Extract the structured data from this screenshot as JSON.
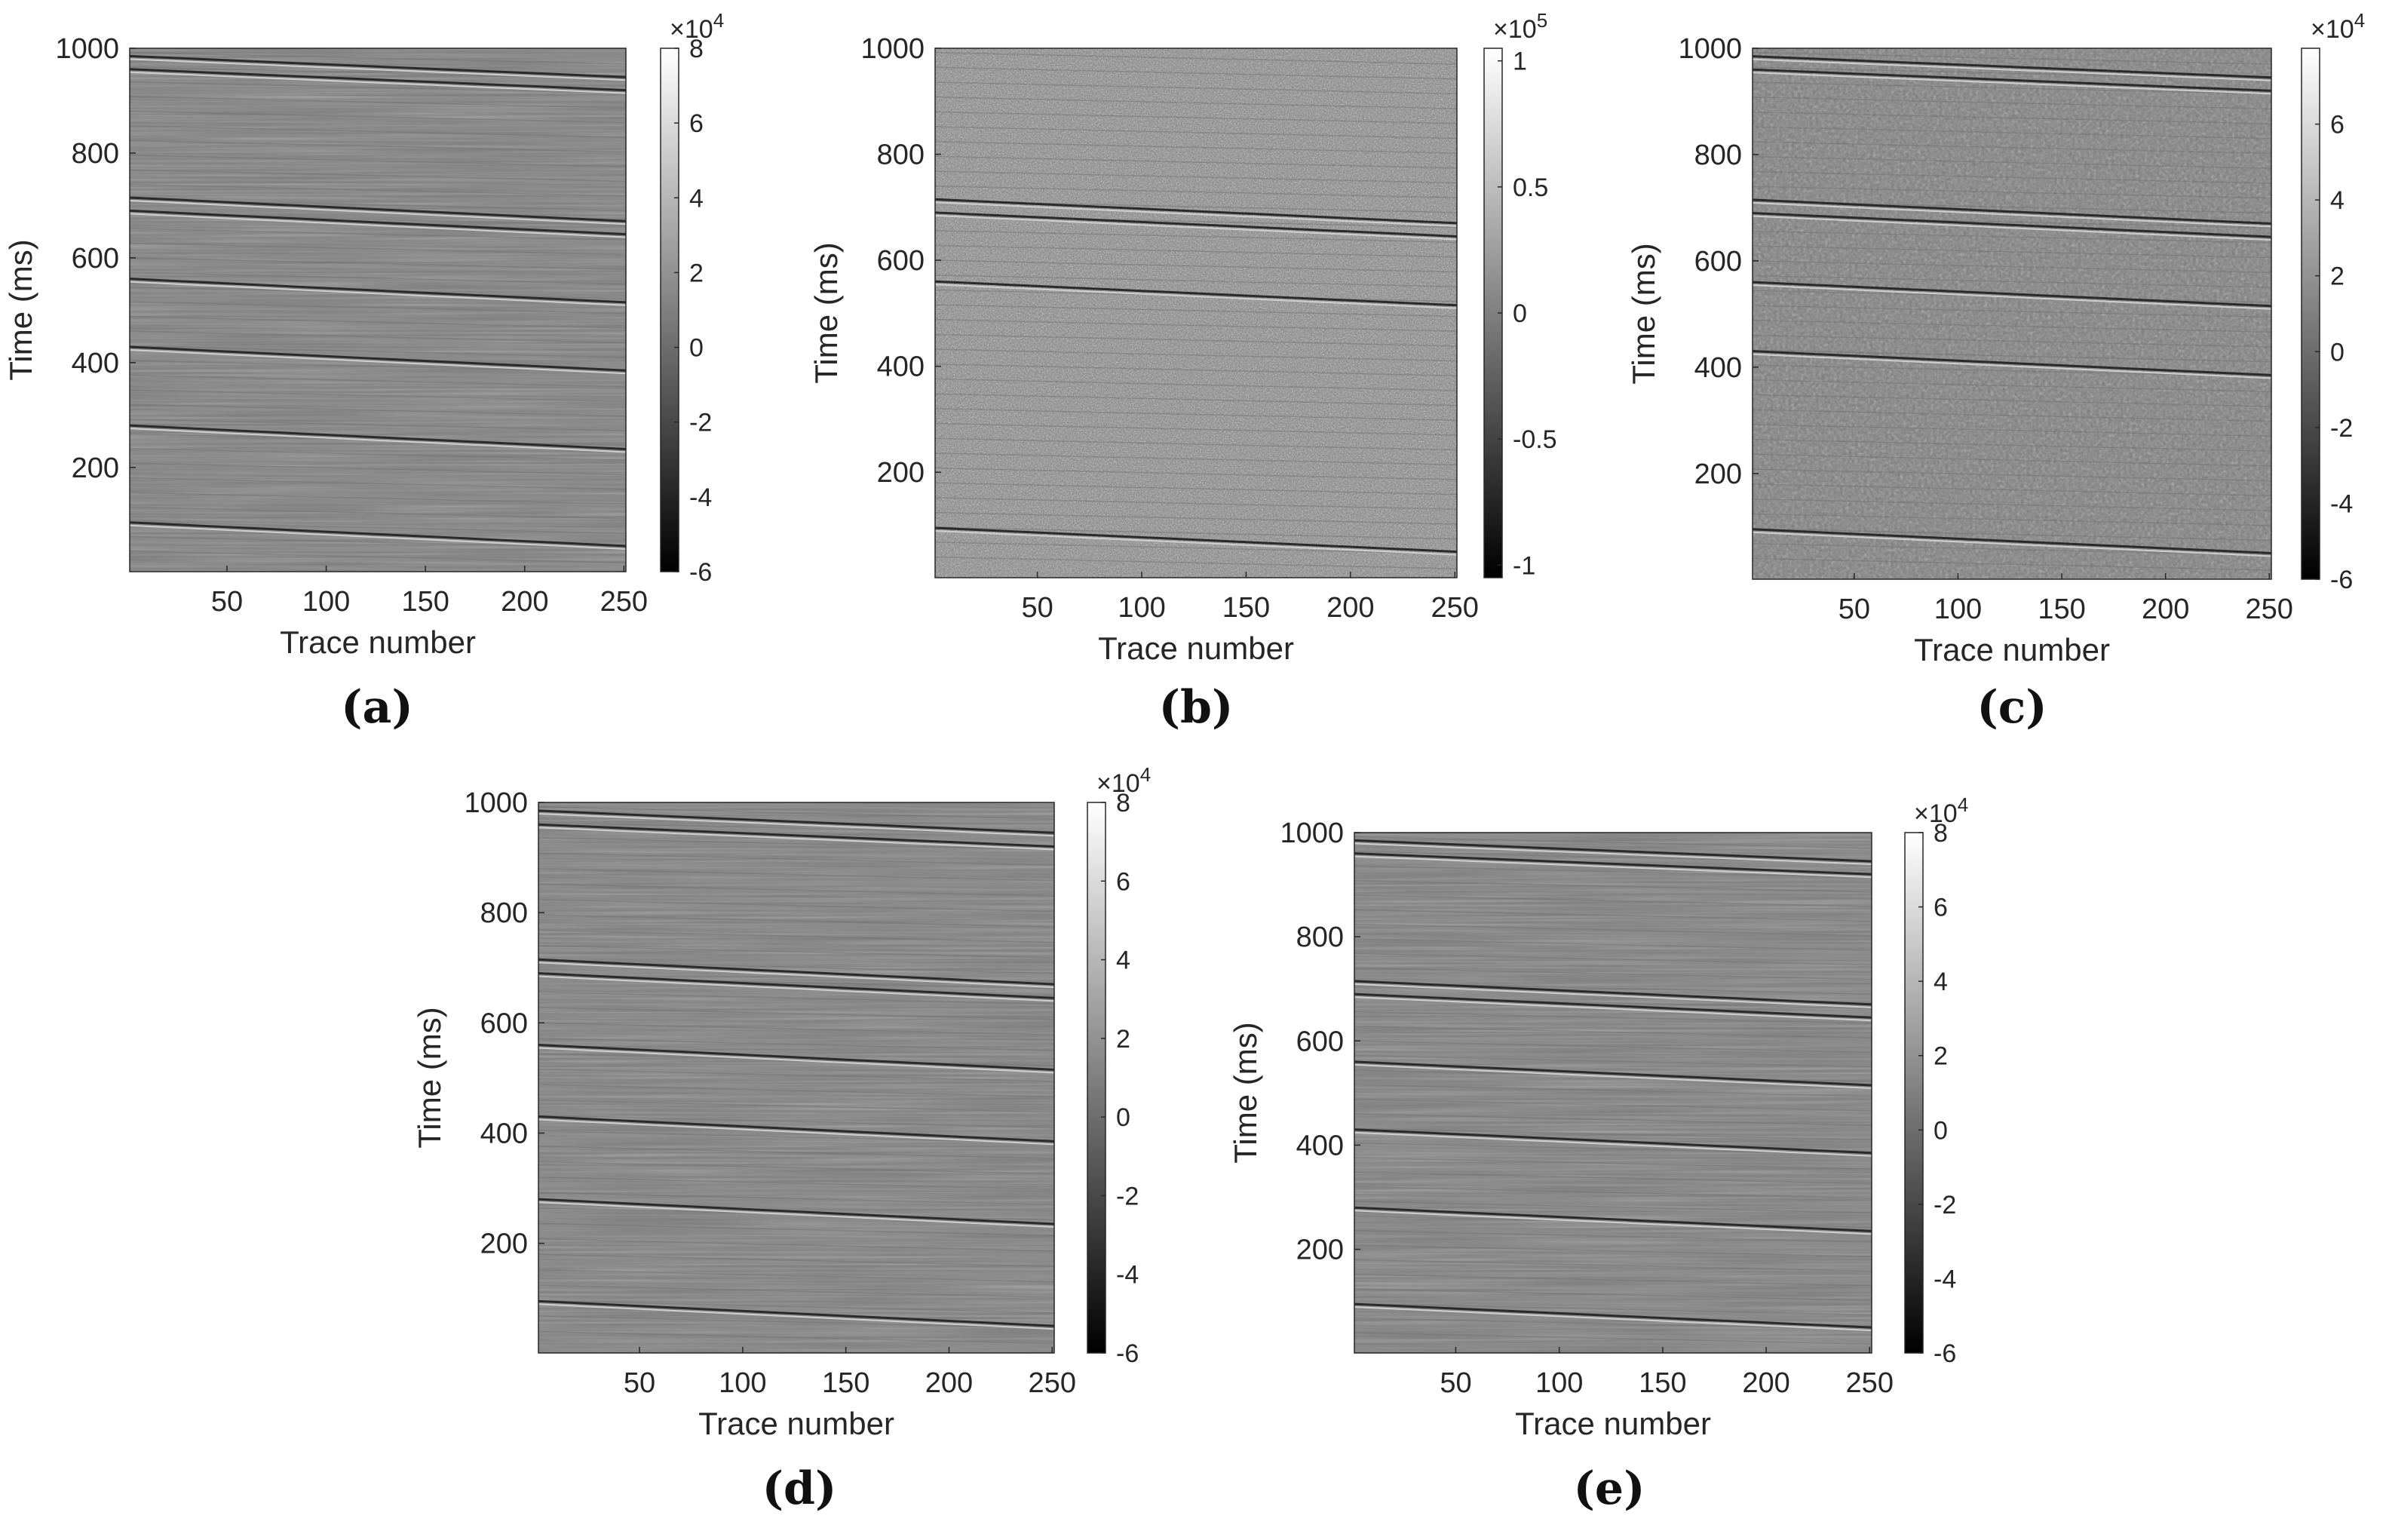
{
  "chart_data": [
    {
      "type": "heatmap",
      "panel_label": "(a)",
      "xlabel": "Trace number",
      "ylabel": "Time (ms)",
      "xticks": [
        50,
        100,
        150,
        200,
        250
      ],
      "yticks": [
        200,
        400,
        600,
        800,
        1000
      ],
      "xlim": [
        1,
        251
      ],
      "ylim": [
        1,
        1000
      ],
      "colorbar": {
        "ticks": [
          8,
          6,
          4,
          2,
          0,
          -2,
          -4,
          -6
        ],
        "tick_labels": [
          "8",
          "6",
          "4",
          "2",
          "0",
          "-2",
          "-4",
          "-6"
        ],
        "exponent_label": "×10",
        "exponent": "4",
        "range": [
          -6,
          8
        ]
      },
      "colormap": "gray",
      "noise_level": "low",
      "reflectors_ms": [
        985,
        960,
        715,
        690,
        560,
        430,
        280,
        95
      ]
    },
    {
      "type": "heatmap",
      "panel_label": "(b)",
      "xlabel": "Trace number",
      "ylabel": "Time (ms)",
      "xticks": [
        50,
        100,
        150,
        200,
        250
      ],
      "yticks": [
        200,
        400,
        600,
        800,
        1000
      ],
      "xlim": [
        1,
        251
      ],
      "ylim": [
        1,
        1000
      ],
      "colorbar": {
        "ticks": [
          1,
          0.5,
          0,
          -0.5,
          -1
        ],
        "tick_labels": [
          "1",
          "0.5",
          "0",
          "-0.5",
          "-1"
        ],
        "exponent_label": "×10",
        "exponent": "5",
        "range": [
          -1.05,
          1.05
        ]
      },
      "colormap": "gray",
      "noise_level": "high",
      "reflectors_ms": [
        715,
        690,
        560,
        95
      ]
    },
    {
      "type": "heatmap",
      "panel_label": "(c)",
      "xlabel": "Trace number",
      "ylabel": "Time (ms)",
      "xticks": [
        50,
        100,
        150,
        200,
        250
      ],
      "yticks": [
        200,
        400,
        600,
        800,
        1000
      ],
      "xlim": [
        1,
        251
      ],
      "ylim": [
        1,
        1000
      ],
      "colorbar": {
        "ticks": [
          6,
          4,
          2,
          0,
          -2,
          -4,
          -6
        ],
        "tick_labels": [
          "6",
          "4",
          "2",
          "0",
          "-2",
          "-4",
          "-6"
        ],
        "exponent_label": "×10",
        "exponent": "4",
        "range": [
          -6,
          8
        ]
      },
      "colormap": "gray",
      "noise_level": "medium",
      "reflectors_ms": [
        985,
        960,
        715,
        690,
        560,
        430,
        95
      ]
    },
    {
      "type": "heatmap",
      "panel_label": "(d)",
      "xlabel": "Trace number",
      "ylabel": "Time (ms)",
      "xticks": [
        50,
        100,
        150,
        200,
        250
      ],
      "yticks": [
        200,
        400,
        600,
        800,
        1000
      ],
      "xlim": [
        1,
        251
      ],
      "ylim": [
        1,
        1000
      ],
      "colorbar": {
        "ticks": [
          8,
          6,
          4,
          2,
          0,
          -2,
          -4,
          -6
        ],
        "tick_labels": [
          "8",
          "6",
          "4",
          "2",
          "0",
          "-2",
          "-4",
          "-6"
        ],
        "exponent_label": "×10",
        "exponent": "4",
        "range": [
          -6,
          8
        ]
      },
      "colormap": "gray",
      "noise_level": "low",
      "reflectors_ms": [
        985,
        960,
        715,
        690,
        560,
        430,
        280,
        95
      ]
    },
    {
      "type": "heatmap",
      "panel_label": "(e)",
      "xlabel": "Trace number",
      "ylabel": "Time (ms)",
      "xticks": [
        50,
        100,
        150,
        200,
        250
      ],
      "yticks": [
        200,
        400,
        600,
        800,
        1000
      ],
      "xlim": [
        1,
        251
      ],
      "ylim": [
        1,
        1000
      ],
      "colorbar": {
        "ticks": [
          8,
          6,
          4,
          2,
          0,
          -2,
          -4,
          -6
        ],
        "tick_labels": [
          "8",
          "6",
          "4",
          "2",
          "0",
          "-2",
          "-4",
          "-6"
        ],
        "exponent_label": "×10",
        "exponent": "4",
        "range": [
          -6,
          8
        ]
      },
      "colormap": "gray",
      "noise_level": "low",
      "reflectors_ms": [
        985,
        960,
        715,
        690,
        560,
        430,
        280,
        95
      ]
    }
  ]
}
